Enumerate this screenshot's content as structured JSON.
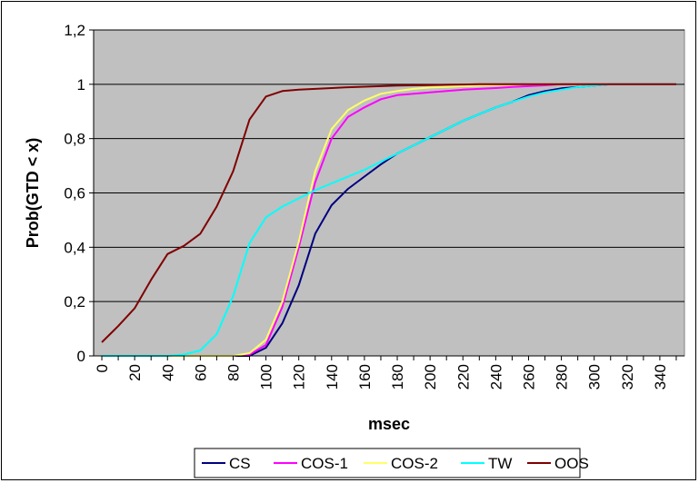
{
  "chart_data": {
    "type": "line",
    "title": "",
    "xlabel": "msec",
    "ylabel": "Prob(GTD < x)",
    "xlim": [
      -5,
      355
    ],
    "ylim": [
      0,
      1.2
    ],
    "x_ticks": [
      0,
      20,
      40,
      60,
      80,
      100,
      120,
      140,
      160,
      180,
      200,
      220,
      240,
      260,
      280,
      300,
      320,
      340
    ],
    "y_ticks": [
      0,
      0.2,
      0.4,
      0.6,
      0.8,
      1,
      1.2
    ],
    "y_tick_labels": [
      "0",
      "0,2",
      "0,4",
      "0,6",
      "0,8",
      "1",
      "1,2"
    ],
    "grid": "horizontal",
    "legend_position": "bottom",
    "plot_background": "#c0c0c0",
    "series": [
      {
        "name": "CS",
        "color": "#000080",
        "points": [
          [
            0,
            0
          ],
          [
            10,
            0
          ],
          [
            20,
            0
          ],
          [
            30,
            0
          ],
          [
            40,
            0
          ],
          [
            50,
            0
          ],
          [
            60,
            0
          ],
          [
            70,
            0
          ],
          [
            80,
            0
          ],
          [
            90,
            0
          ],
          [
            100,
            0.03
          ],
          [
            110,
            0.12
          ],
          [
            120,
            0.26
          ],
          [
            130,
            0.45
          ],
          [
            140,
            0.555
          ],
          [
            150,
            0.615
          ],
          [
            160,
            0.66
          ],
          [
            170,
            0.705
          ],
          [
            180,
            0.745
          ],
          [
            190,
            0.775
          ],
          [
            200,
            0.805
          ],
          [
            210,
            0.835
          ],
          [
            220,
            0.865
          ],
          [
            230,
            0.89
          ],
          [
            240,
            0.915
          ],
          [
            250,
            0.935
          ],
          [
            260,
            0.96
          ],
          [
            270,
            0.975
          ],
          [
            280,
            0.985
          ],
          [
            290,
            0.99
          ],
          [
            300,
            0.995
          ],
          [
            310,
            1
          ],
          [
            320,
            1
          ],
          [
            330,
            1
          ],
          [
            340,
            1
          ],
          [
            350,
            1
          ]
        ]
      },
      {
        "name": "COS-1",
        "color": "#ff00ff",
        "points": [
          [
            0,
            0
          ],
          [
            10,
            0
          ],
          [
            20,
            0
          ],
          [
            30,
            0
          ],
          [
            40,
            0
          ],
          [
            50,
            0
          ],
          [
            60,
            0
          ],
          [
            70,
            0
          ],
          [
            80,
            0
          ],
          [
            90,
            0.005
          ],
          [
            100,
            0.04
          ],
          [
            110,
            0.18
          ],
          [
            120,
            0.4
          ],
          [
            130,
            0.64
          ],
          [
            140,
            0.8
          ],
          [
            150,
            0.88
          ],
          [
            160,
            0.915
          ],
          [
            170,
            0.945
          ],
          [
            180,
            0.96
          ],
          [
            190,
            0.965
          ],
          [
            200,
            0.97
          ],
          [
            210,
            0.975
          ],
          [
            220,
            0.98
          ],
          [
            230,
            0.983
          ],
          [
            240,
            0.986
          ],
          [
            250,
            0.99
          ],
          [
            260,
            0.993
          ],
          [
            270,
            0.996
          ],
          [
            280,
            1
          ],
          [
            290,
            1
          ],
          [
            300,
            1
          ],
          [
            310,
            1
          ],
          [
            320,
            1
          ],
          [
            330,
            1
          ],
          [
            340,
            1
          ],
          [
            350,
            1
          ]
        ]
      },
      {
        "name": "COS-2",
        "color": "#ffff66",
        "points": [
          [
            0,
            0
          ],
          [
            10,
            0
          ],
          [
            20,
            0
          ],
          [
            30,
            0
          ],
          [
            40,
            0
          ],
          [
            50,
            0
          ],
          [
            60,
            0
          ],
          [
            70,
            0
          ],
          [
            80,
            0
          ],
          [
            90,
            0.01
          ],
          [
            100,
            0.06
          ],
          [
            110,
            0.2
          ],
          [
            120,
            0.42
          ],
          [
            130,
            0.68
          ],
          [
            140,
            0.835
          ],
          [
            150,
            0.905
          ],
          [
            160,
            0.94
          ],
          [
            170,
            0.965
          ],
          [
            180,
            0.975
          ],
          [
            190,
            0.983
          ],
          [
            200,
            0.988
          ],
          [
            210,
            0.99
          ],
          [
            220,
            0.993
          ],
          [
            230,
            0.995
          ],
          [
            240,
            0.997
          ],
          [
            250,
            0.998
          ],
          [
            260,
            1
          ],
          [
            270,
            1
          ],
          [
            280,
            1
          ],
          [
            290,
            1
          ],
          [
            300,
            1
          ],
          [
            310,
            1
          ],
          [
            320,
            1
          ],
          [
            330,
            1
          ],
          [
            340,
            1
          ],
          [
            350,
            1
          ]
        ]
      },
      {
        "name": "TW",
        "color": "#00ffff",
        "points": [
          [
            0,
            0
          ],
          [
            10,
            0
          ],
          [
            20,
            0
          ],
          [
            30,
            0
          ],
          [
            40,
            0
          ],
          [
            50,
            0.005
          ],
          [
            60,
            0.02
          ],
          [
            70,
            0.08
          ],
          [
            80,
            0.22
          ],
          [
            90,
            0.415
          ],
          [
            100,
            0.51
          ],
          [
            110,
            0.55
          ],
          [
            120,
            0.58
          ],
          [
            130,
            0.61
          ],
          [
            140,
            0.635
          ],
          [
            150,
            0.66
          ],
          [
            160,
            0.685
          ],
          [
            170,
            0.715
          ],
          [
            180,
            0.745
          ],
          [
            190,
            0.775
          ],
          [
            200,
            0.805
          ],
          [
            210,
            0.835
          ],
          [
            220,
            0.865
          ],
          [
            230,
            0.89
          ],
          [
            240,
            0.915
          ],
          [
            250,
            0.935
          ],
          [
            260,
            0.955
          ],
          [
            270,
            0.97
          ],
          [
            280,
            0.98
          ],
          [
            290,
            0.99
          ],
          [
            300,
            0.995
          ],
          [
            310,
            1
          ],
          [
            320,
            1
          ],
          [
            330,
            1
          ],
          [
            340,
            1
          ],
          [
            350,
            1
          ]
        ]
      },
      {
        "name": "OOS",
        "color": "#800000",
        "points": [
          [
            0,
            0.05
          ],
          [
            10,
            0.11
          ],
          [
            20,
            0.175
          ],
          [
            30,
            0.28
          ],
          [
            40,
            0.375
          ],
          [
            50,
            0.405
          ],
          [
            60,
            0.45
          ],
          [
            70,
            0.55
          ],
          [
            80,
            0.68
          ],
          [
            90,
            0.87
          ],
          [
            100,
            0.955
          ],
          [
            110,
            0.975
          ],
          [
            120,
            0.98
          ],
          [
            130,
            0.983
          ],
          [
            140,
            0.986
          ],
          [
            150,
            0.989
          ],
          [
            160,
            0.991
          ],
          [
            170,
            0.993
          ],
          [
            180,
            0.995
          ],
          [
            190,
            0.996
          ],
          [
            200,
            0.997
          ],
          [
            210,
            0.998
          ],
          [
            220,
            0.999
          ],
          [
            230,
            1
          ],
          [
            240,
            1
          ],
          [
            250,
            1
          ],
          [
            260,
            1
          ],
          [
            270,
            1
          ],
          [
            280,
            1
          ],
          [
            290,
            1
          ],
          [
            300,
            1
          ],
          [
            310,
            1
          ],
          [
            320,
            1
          ],
          [
            330,
            1
          ],
          [
            340,
            1
          ],
          [
            350,
            1
          ]
        ]
      }
    ]
  }
}
